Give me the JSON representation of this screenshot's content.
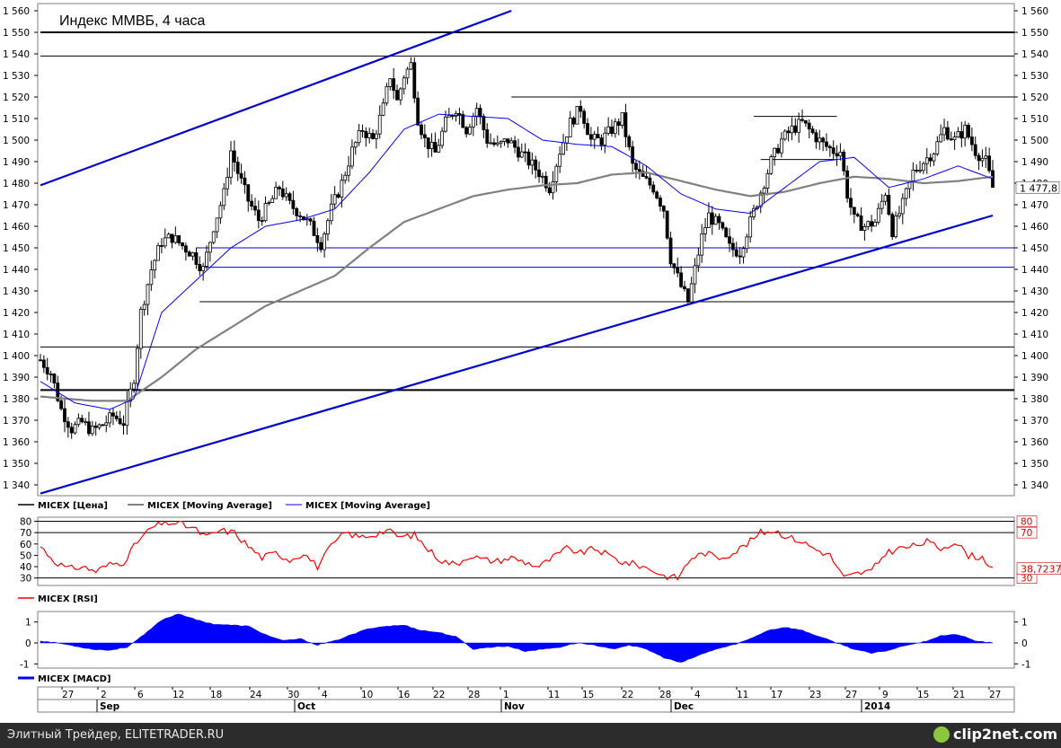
{
  "chart_data": [
    {
      "type": "candlestick",
      "title": "Индекс ММВБ, 4 часа",
      "ylim": [
        1335,
        1560
      ],
      "y_ticks": [
        "1 340",
        "1 350",
        "1 360",
        "1 370",
        "1 380",
        "1 390",
        "1 400",
        "1 410",
        "1 420",
        "1 430",
        "1 440",
        "1 450",
        "1 460",
        "1 470",
        "1 480",
        "1 490",
        "1 500",
        "1 510",
        "1 520",
        "1 530",
        "1 540",
        "1 550",
        "1 560"
      ],
      "last_value_label": "1 477,8",
      "last_value": 1477.8,
      "legend": [
        {
          "name": "MICEX [Цена]",
          "color": "#000000"
        },
        {
          "name": "MICEX [Moving Average]",
          "color": "#808080"
        },
        {
          "name": "MICEX [Moving Average]",
          "color": "#0000ff"
        }
      ],
      "price_path": [
        [
          0,
          1398
        ],
        [
          3,
          1392
        ],
        [
          6,
          1375
        ],
        [
          9,
          1366
        ],
        [
          12,
          1369
        ],
        [
          15,
          1365
        ],
        [
          18,
          1368
        ],
        [
          21,
          1372
        ],
        [
          24,
          1369
        ],
        [
          27,
          1390
        ],
        [
          29,
          1420
        ],
        [
          32,
          1440
        ],
        [
          35,
          1453
        ],
        [
          38,
          1455
        ],
        [
          41,
          1451
        ],
        [
          44,
          1447
        ],
        [
          47,
          1440
        ],
        [
          50,
          1460
        ],
        [
          53,
          1475
        ],
        [
          55,
          1495
        ],
        [
          57,
          1485
        ],
        [
          60,
          1472
        ],
        [
          63,
          1463
        ],
        [
          66,
          1470
        ],
        [
          69,
          1478
        ],
        [
          72,
          1470
        ],
        [
          75,
          1466
        ],
        [
          78,
          1460
        ],
        [
          81,
          1452
        ],
        [
          84,
          1468
        ],
        [
          87,
          1480
        ],
        [
          90,
          1495
        ],
        [
          93,
          1505
        ],
        [
          96,
          1500
        ],
        [
          99,
          1515
        ],
        [
          101,
          1530
        ],
        [
          103,
          1518
        ],
        [
          105,
          1530
        ],
        [
          107,
          1535
        ],
        [
          109,
          1510
        ],
        [
          111,
          1500
        ],
        [
          114,
          1494
        ],
        [
          117,
          1508
        ],
        [
          120,
          1515
        ],
        [
          123,
          1505
        ],
        [
          126,
          1515
        ],
        [
          129,
          1500
        ],
        [
          132,
          1497
        ],
        [
          135,
          1500
        ],
        [
          138,
          1495
        ],
        [
          141,
          1490
        ],
        [
          144,
          1485
        ],
        [
          147,
          1478
        ],
        [
          150,
          1495
        ],
        [
          153,
          1508
        ],
        [
          156,
          1515
        ],
        [
          159,
          1500
        ],
        [
          162,
          1500
        ],
        [
          165,
          1505
        ],
        [
          168,
          1510
        ],
        [
          171,
          1488
        ],
        [
          174,
          1482
        ],
        [
          177,
          1478
        ],
        [
          180,
          1468
        ],
        [
          182,
          1445
        ],
        [
          185,
          1432
        ],
        [
          187,
          1425
        ],
        [
          189,
          1440
        ],
        [
          191,
          1455
        ],
        [
          193,
          1465
        ],
        [
          196,
          1460
        ],
        [
          199,
          1450
        ],
        [
          202,
          1448
        ],
        [
          205,
          1462
        ],
        [
          208,
          1476
        ],
        [
          211,
          1490
        ],
        [
          214,
          1500
        ],
        [
          217,
          1505
        ],
        [
          220,
          1508
        ],
        [
          223,
          1503
        ],
        [
          226,
          1498
        ],
        [
          229,
          1495
        ],
        [
          231,
          1495
        ],
        [
          233,
          1475
        ],
        [
          235,
          1463
        ],
        [
          238,
          1460
        ],
        [
          241,
          1462
        ],
        [
          244,
          1476
        ],
        [
          246,
          1458
        ],
        [
          249,
          1470
        ],
        [
          252,
          1485
        ],
        [
          255,
          1490
        ],
        [
          258,
          1495
        ],
        [
          261,
          1505
        ],
        [
          264,
          1500
        ],
        [
          267,
          1505
        ],
        [
          270,
          1495
        ],
        [
          273,
          1490
        ],
        [
          275,
          1478
        ]
      ],
      "horizontal_levels": [
        {
          "value": 1550,
          "color": "#000000",
          "from": 0,
          "width": 2
        },
        {
          "value": 1539,
          "color": "#000000",
          "from": 0,
          "width": 1
        },
        {
          "value": 1520,
          "color": "#000000",
          "from": 136,
          "width": 1
        },
        {
          "value": 1511,
          "color": "#000000",
          "from": 206,
          "to": 230,
          "width": 1
        },
        {
          "value": 1491,
          "color": "#000000",
          "from": 208,
          "to": 230,
          "width": 1
        },
        {
          "value": 1450,
          "color": "#0000cc",
          "from": 45,
          "width": 1
        },
        {
          "value": 1441,
          "color": "#0000cc",
          "from": 46,
          "width": 1
        },
        {
          "value": 1425,
          "color": "#000000",
          "from": 46,
          "width": 1
        },
        {
          "value": 1404,
          "color": "#000000",
          "from": 0,
          "width": 1
        },
        {
          "value": 1384,
          "color": "#000000",
          "from": 0,
          "width": 2
        }
      ],
      "trend_lines": [
        {
          "from": [
            0,
            1479
          ],
          "to": [
            136,
            1560
          ],
          "color": "#0000cc"
        },
        {
          "from": [
            0,
            1336
          ],
          "to": [
            275,
            1465
          ],
          "color": "#0000cc"
        }
      ],
      "ma_slow": [
        [
          0,
          1381
        ],
        [
          15,
          1379
        ],
        [
          25,
          1379
        ],
        [
          35,
          1390
        ],
        [
          45,
          1403
        ],
        [
          55,
          1413
        ],
        [
          65,
          1423
        ],
        [
          75,
          1430
        ],
        [
          85,
          1437
        ],
        [
          95,
          1450
        ],
        [
          105,
          1462
        ],
        [
          115,
          1468
        ],
        [
          125,
          1474
        ],
        [
          135,
          1477
        ],
        [
          145,
          1479
        ],
        [
          155,
          1480
        ],
        [
          165,
          1484
        ],
        [
          175,
          1485
        ],
        [
          185,
          1481
        ],
        [
          195,
          1477
        ],
        [
          205,
          1474
        ],
        [
          215,
          1476
        ],
        [
          225,
          1480
        ],
        [
          235,
          1483
        ],
        [
          245,
          1482
        ],
        [
          255,
          1480
        ],
        [
          265,
          1481
        ],
        [
          275,
          1483
        ]
      ],
      "ma_fast": [
        [
          0,
          1388
        ],
        [
          10,
          1378
        ],
        [
          20,
          1375
        ],
        [
          27,
          1380
        ],
        [
          35,
          1420
        ],
        [
          45,
          1435
        ],
        [
          55,
          1450
        ],
        [
          65,
          1460
        ],
        [
          75,
          1463
        ],
        [
          85,
          1468
        ],
        [
          95,
          1485
        ],
        [
          105,
          1505
        ],
        [
          115,
          1512
        ],
        [
          125,
          1511
        ],
        [
          135,
          1510
        ],
        [
          145,
          1500
        ],
        [
          155,
          1498
        ],
        [
          165,
          1497
        ],
        [
          175,
          1488
        ],
        [
          185,
          1475
        ],
        [
          195,
          1468
        ],
        [
          205,
          1466
        ],
        [
          215,
          1478
        ],
        [
          225,
          1490
        ],
        [
          235,
          1492
        ],
        [
          245,
          1478
        ],
        [
          255,
          1482
        ],
        [
          265,
          1488
        ],
        [
          275,
          1482
        ]
      ]
    },
    {
      "type": "line",
      "name": "rsi",
      "ylim": [
        25,
        82
      ],
      "y_ticks": [
        "30",
        "40",
        "50",
        "60",
        "70",
        "80"
      ],
      "reference_levels": [
        80,
        70,
        30
      ],
      "right_labels": [
        "80",
        "70",
        "30"
      ],
      "last_value_label": "38,7237",
      "last_value": 38.72,
      "legend": [
        {
          "name": "MICEX [RSI]",
          "color": "#ff0000"
        }
      ],
      "values": [
        [
          0,
          58
        ],
        [
          4,
          45
        ],
        [
          8,
          38
        ],
        [
          12,
          40
        ],
        [
          16,
          36
        ],
        [
          20,
          42
        ],
        [
          24,
          44
        ],
        [
          28,
          62
        ],
        [
          32,
          74
        ],
        [
          36,
          79
        ],
        [
          40,
          78
        ],
        [
          44,
          74
        ],
        [
          48,
          66
        ],
        [
          52,
          72
        ],
        [
          56,
          70
        ],
        [
          60,
          58
        ],
        [
          64,
          48
        ],
        [
          68,
          52
        ],
        [
          72,
          46
        ],
        [
          76,
          52
        ],
        [
          80,
          40
        ],
        [
          84,
          58
        ],
        [
          88,
          70
        ],
        [
          92,
          66
        ],
        [
          96,
          68
        ],
        [
          100,
          72
        ],
        [
          104,
          66
        ],
        [
          108,
          68
        ],
        [
          112,
          55
        ],
        [
          116,
          45
        ],
        [
          120,
          42
        ],
        [
          124,
          50
        ],
        [
          128,
          46
        ],
        [
          132,
          45
        ],
        [
          136,
          48
        ],
        [
          140,
          44
        ],
        [
          144,
          40
        ],
        [
          148,
          48
        ],
        [
          152,
          56
        ],
        [
          156,
          52
        ],
        [
          160,
          56
        ],
        [
          164,
          50
        ],
        [
          168,
          44
        ],
        [
          172,
          42
        ],
        [
          176,
          38
        ],
        [
          180,
          32
        ],
        [
          184,
          30
        ],
        [
          188,
          48
        ],
        [
          192,
          52
        ],
        [
          196,
          48
        ],
        [
          200,
          52
        ],
        [
          204,
          60
        ],
        [
          208,
          70
        ],
        [
          212,
          72
        ],
        [
          216,
          66
        ],
        [
          220,
          62
        ],
        [
          224,
          55
        ],
        [
          228,
          50
        ],
        [
          232,
          30
        ],
        [
          236,
          34
        ],
        [
          240,
          36
        ],
        [
          244,
          52
        ],
        [
          248,
          56
        ],
        [
          252,
          58
        ],
        [
          256,
          62
        ],
        [
          260,
          56
        ],
        [
          264,
          62
        ],
        [
          268,
          50
        ],
        [
          272,
          48
        ],
        [
          275,
          39
        ]
      ]
    },
    {
      "type": "area",
      "name": "macd",
      "ylim": [
        -1.2,
        1.5
      ],
      "y_ticks": [
        "1",
        "0",
        "-1"
      ],
      "legend": [
        {
          "name": "MICEX [MACD]",
          "color": "#0000ff"
        }
      ],
      "values": [
        [
          0,
          0.1
        ],
        [
          5,
          0.0
        ],
        [
          10,
          -0.15
        ],
        [
          15,
          -0.3
        ],
        [
          20,
          -0.35
        ],
        [
          25,
          -0.2
        ],
        [
          30,
          0.4
        ],
        [
          35,
          1.1
        ],
        [
          40,
          1.4
        ],
        [
          45,
          1.1
        ],
        [
          50,
          0.9
        ],
        [
          55,
          0.85
        ],
        [
          60,
          0.8
        ],
        [
          65,
          0.4
        ],
        [
          70,
          0.1
        ],
        [
          75,
          0.2
        ],
        [
          80,
          -0.1
        ],
        [
          85,
          0.1
        ],
        [
          90,
          0.4
        ],
        [
          95,
          0.7
        ],
        [
          100,
          0.8
        ],
        [
          105,
          0.85
        ],
        [
          110,
          0.6
        ],
        [
          115,
          0.5
        ],
        [
          120,
          0.3
        ],
        [
          125,
          -0.3
        ],
        [
          130,
          -0.2
        ],
        [
          135,
          -0.15
        ],
        [
          140,
          -0.4
        ],
        [
          145,
          -0.3
        ],
        [
          150,
          -0.2
        ],
        [
          155,
          0.0
        ],
        [
          160,
          -0.1
        ],
        [
          165,
          -0.3
        ],
        [
          170,
          -0.1
        ],
        [
          175,
          -0.3
        ],
        [
          180,
          -0.7
        ],
        [
          185,
          -0.95
        ],
        [
          190,
          -0.6
        ],
        [
          195,
          -0.3
        ],
        [
          200,
          -0.1
        ],
        [
          205,
          0.2
        ],
        [
          210,
          0.6
        ],
        [
          215,
          0.75
        ],
        [
          220,
          0.6
        ],
        [
          225,
          0.3
        ],
        [
          230,
          0.0
        ],
        [
          235,
          -0.3
        ],
        [
          240,
          -0.5
        ],
        [
          245,
          -0.35
        ],
        [
          250,
          -0.1
        ],
        [
          255,
          0.05
        ],
        [
          260,
          0.35
        ],
        [
          265,
          0.4
        ],
        [
          270,
          0.1
        ],
        [
          275,
          0.0
        ]
      ]
    }
  ],
  "x_axis": {
    "day_ticks": [
      "27",
      "2",
      "6",
      "12",
      "18",
      "24",
      "30",
      "4",
      "10",
      "16",
      "22",
      "28",
      "1",
      "11",
      "15",
      "22",
      "28",
      "4",
      "11",
      "17",
      "23",
      "27",
      "9",
      "15",
      "21",
      "27"
    ],
    "month_labels": [
      "Sep",
      "Oct",
      "Nov",
      "Dec",
      "2014"
    ]
  },
  "footer": {
    "left_text": "Элитный Трейдер, ELITETRADER.RU",
    "brand": "clip2net.com"
  }
}
